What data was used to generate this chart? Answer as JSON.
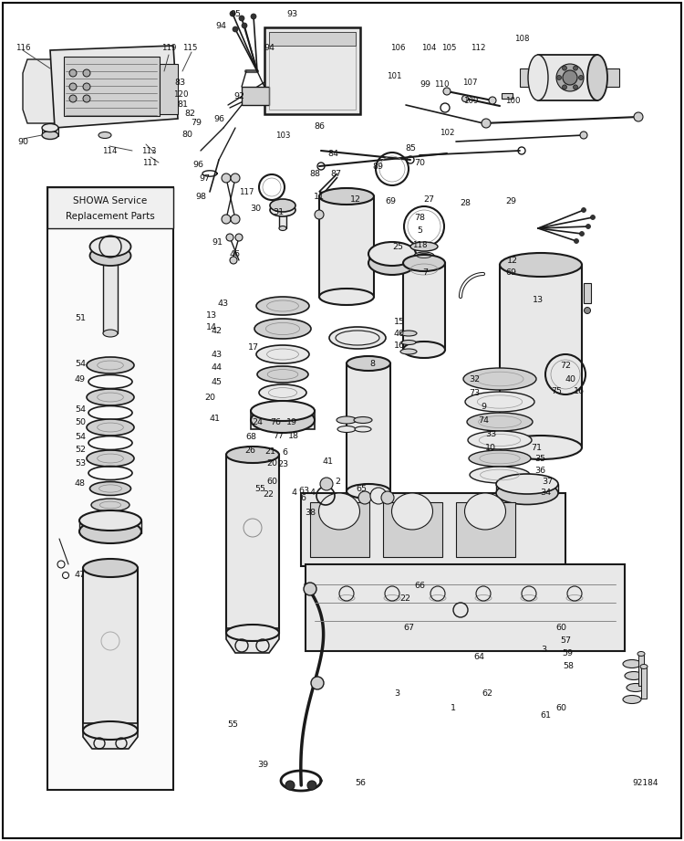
{
  "background_color": "#ffffff",
  "fig_width": 7.5,
  "fig_height": 9.21,
  "dpi": 100,
  "diagram_label": "92184",
  "showa_label1": "SHOWA Service",
  "showa_label2": "Replacement Parts"
}
